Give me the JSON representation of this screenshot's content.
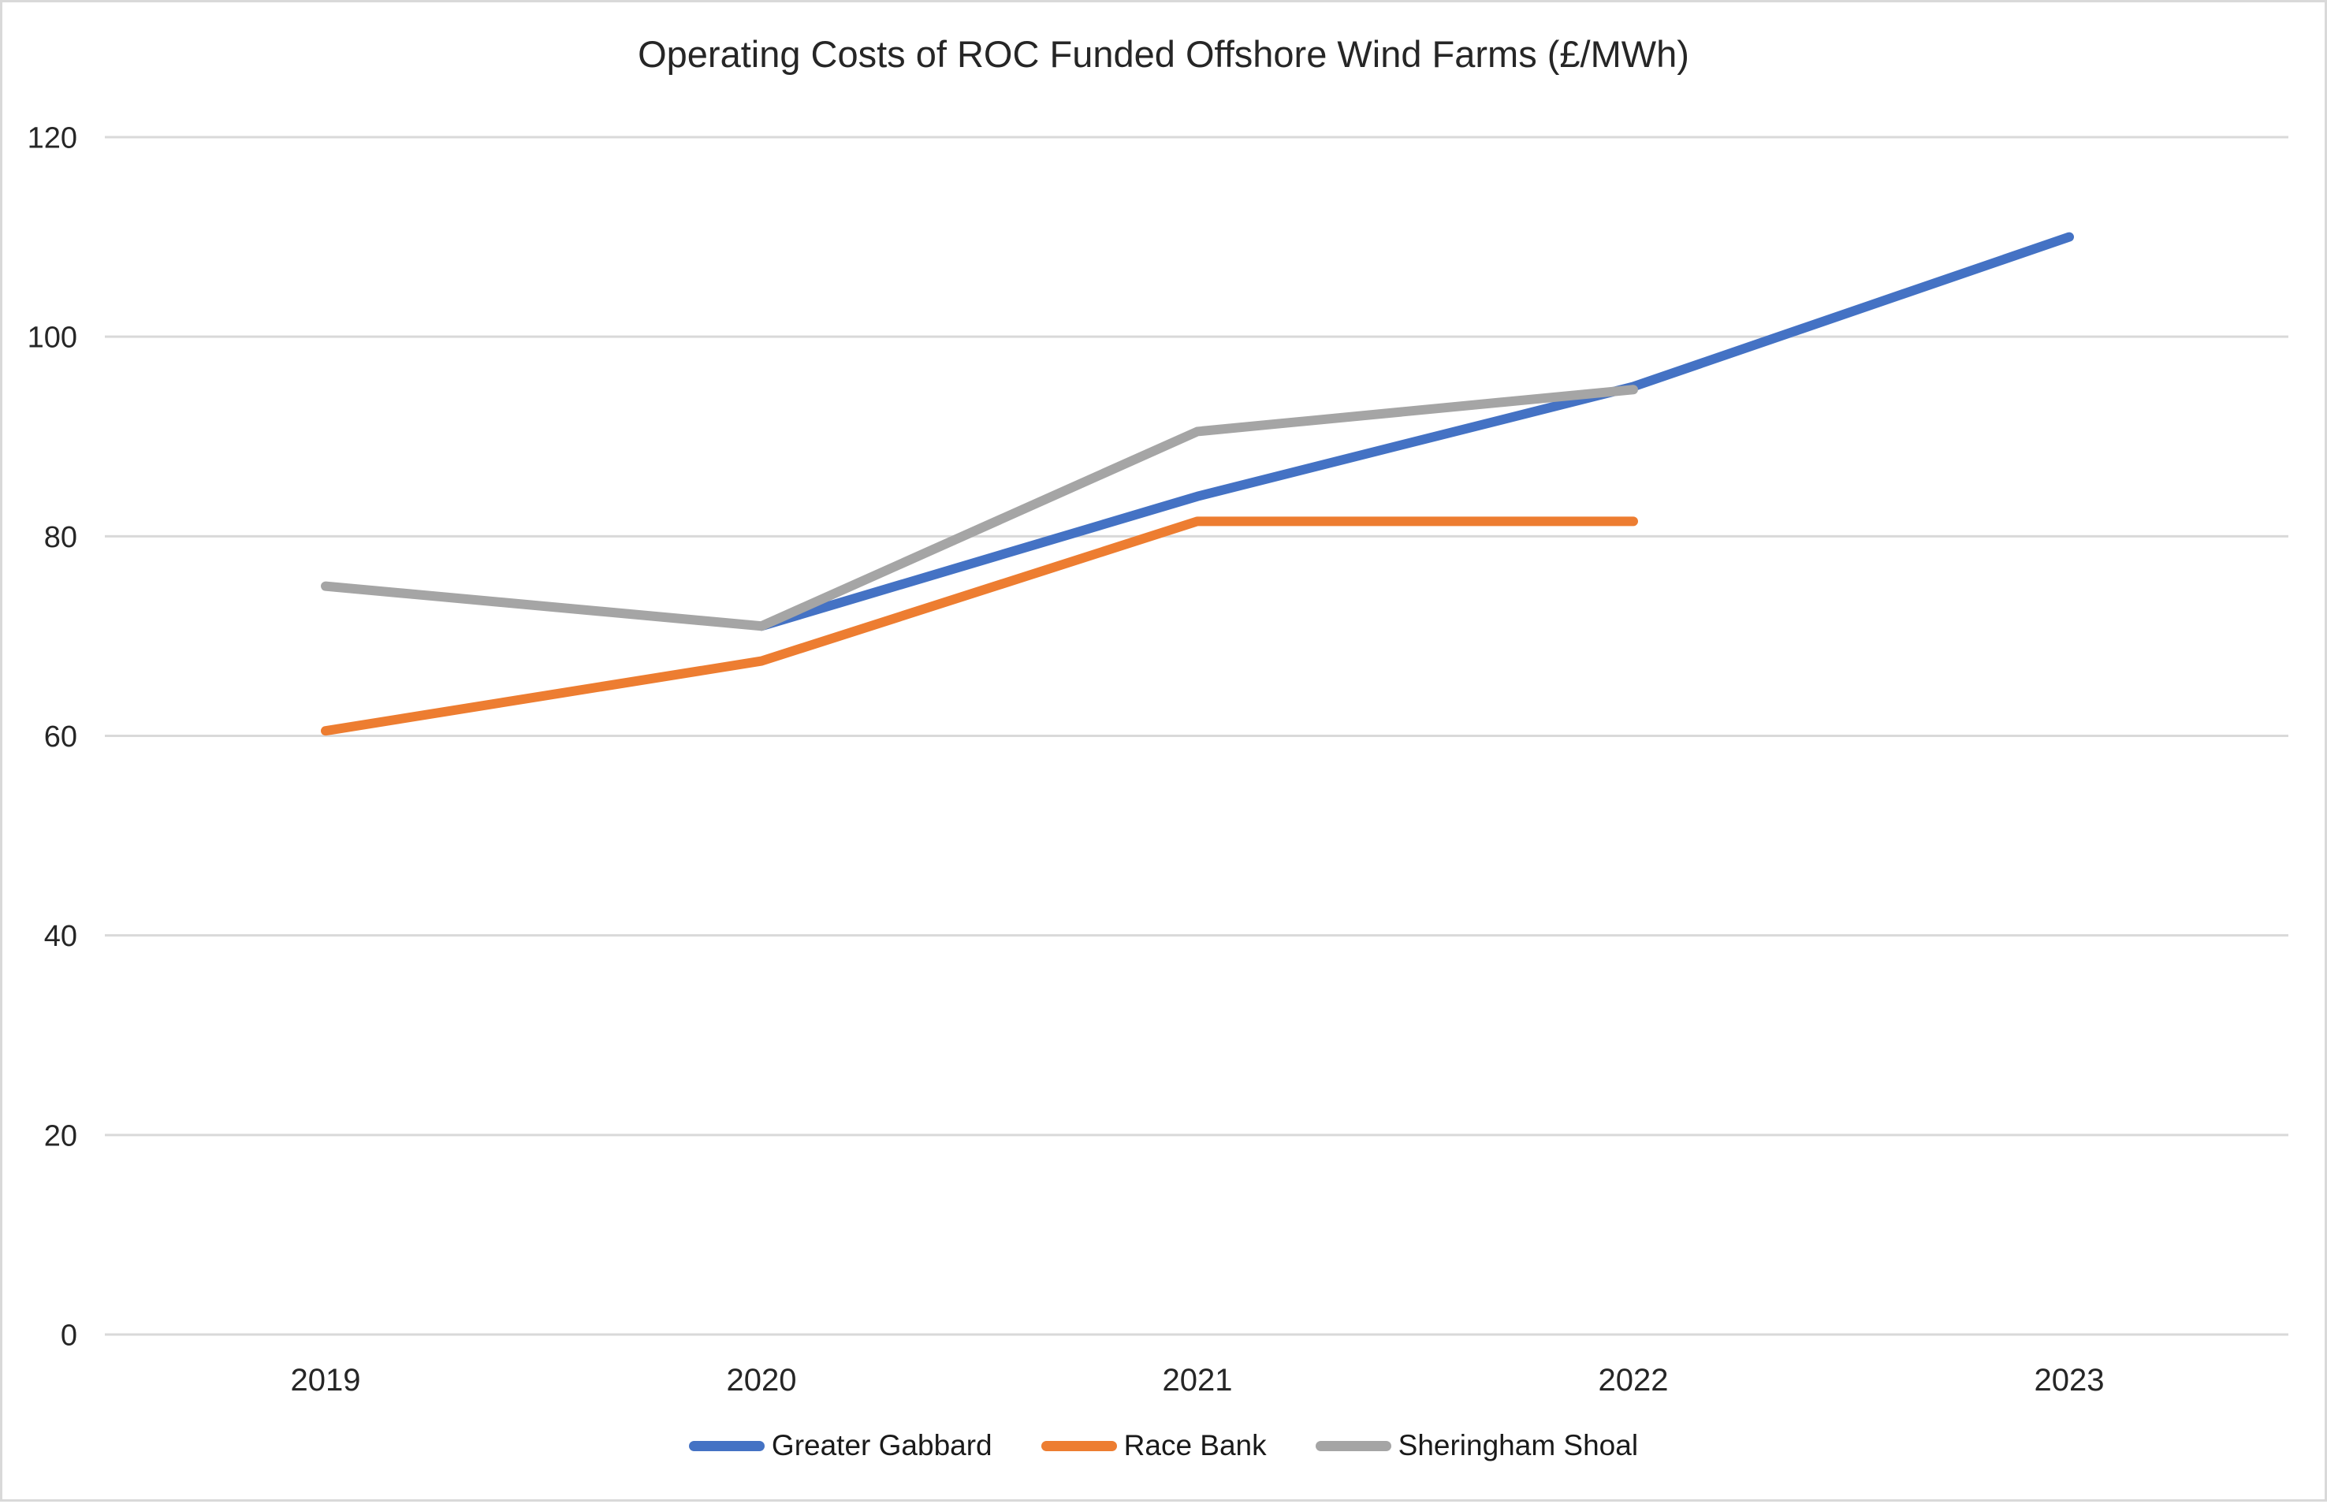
{
  "chart_data": {
    "type": "line",
    "title": "Operating Costs of ROC Funded Offshore Wind Farms (£/MWh)",
    "x_categories": [
      "2019",
      "2020",
      "2021",
      "2022",
      "2023"
    ],
    "series": [
      {
        "name": "Greater Gabbard",
        "color": "#4472C4",
        "values": [
          null,
          71,
          84,
          95,
          110
        ]
      },
      {
        "name": "Race Bank",
        "color": "#ED7D31",
        "values": [
          60.5,
          67.5,
          81.5,
          81.5,
          null
        ]
      },
      {
        "name": "Sheringham Shoal",
        "color": "#A5A5A5",
        "values": [
          75,
          71,
          90.5,
          94.7,
          null
        ]
      }
    ],
    "ylabel": "",
    "xlabel": "",
    "ylim": [
      0,
      120
    ],
    "ytick_step": 20,
    "ytick_labels": [
      "0",
      "20",
      "40",
      "60",
      "80",
      "100",
      "120"
    ],
    "grid": true,
    "gridline_color": "#D9D9D9",
    "axis_text_color": "#262626",
    "legend_position": "bottom",
    "chart_border_color": "#D9D9D9",
    "background_color": "#FFFFFF"
  }
}
